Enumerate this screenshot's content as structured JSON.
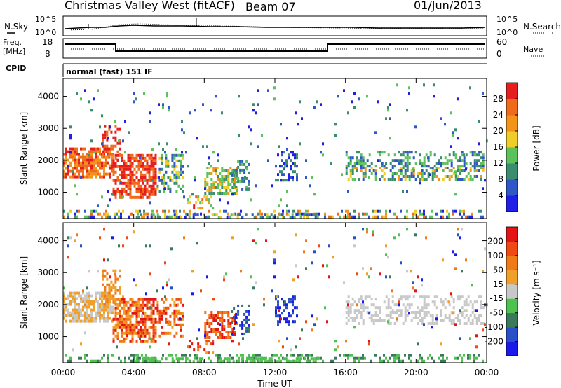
{
  "header": {
    "station": "Christmas Valley West (fitACF)",
    "beam": "Beam 07",
    "date": "01/Jun/2013"
  },
  "panels": {
    "noise": {
      "left_label": "N.Sky",
      "right_label": "N.Search",
      "left_ticks": [
        "10^5",
        "10^0"
      ],
      "right_ticks": [
        "10^5",
        "10^0"
      ]
    },
    "freq": {
      "left_label_top": "Freq.",
      "left_label_unit": "[MHz]",
      "left_ticks": [
        "18",
        "8"
      ],
      "right_label": "Nave",
      "right_ticks": [
        "60",
        "0"
      ]
    },
    "cpid": {
      "label": "CPID",
      "text": "normal (fast) 151 IF"
    }
  },
  "chart_data": [
    {
      "type": "heatmap",
      "panel": "power",
      "ylabel": "Slant Range [km]",
      "xlabel": "",
      "x_ticks": [
        "00:00",
        "04:00",
        "08:00",
        "12:00",
        "16:00",
        "20:00",
        "00:00"
      ],
      "y_ticks": [
        1000,
        2000,
        3000,
        4000
      ],
      "ylim": [
        180,
        4560
      ],
      "xlim_hours": [
        0,
        24
      ],
      "colorbar": {
        "label": "Power [dB]",
        "ticks": [
          "4",
          "8",
          "12",
          "16",
          "20",
          "24",
          "28"
        ],
        "colors": [
          "#1f1fe6",
          "#2f57c7",
          "#3c8c6e",
          "#5cc25c",
          "#f0cc28",
          "#f39317",
          "#f06a1c",
          "#e61e1e"
        ]
      }
    },
    {
      "type": "heatmap",
      "panel": "velocity",
      "ylabel": "Slant Range [km]",
      "xlabel": "Time UT",
      "x_ticks": [
        "00:00",
        "04:00",
        "08:00",
        "12:00",
        "16:00",
        "20:00",
        "00:00"
      ],
      "y_ticks": [
        1000,
        2000,
        3000,
        4000
      ],
      "ylim": [
        180,
        4560
      ],
      "xlim_hours": [
        0,
        24
      ],
      "colorbar": {
        "label": "Velocity [m s⁻¹]",
        "ticks": [
          "200",
          "100",
          "50",
          "15",
          "-15",
          "-50",
          "-100",
          "-200"
        ],
        "colors": [
          "#1a1aeb",
          "#2950c8",
          "#3a7a5a",
          "#4ec24e",
          "#c8c8c8",
          "#f0a028",
          "#f07a18",
          "#f04a14",
          "#e41414"
        ]
      }
    }
  ]
}
